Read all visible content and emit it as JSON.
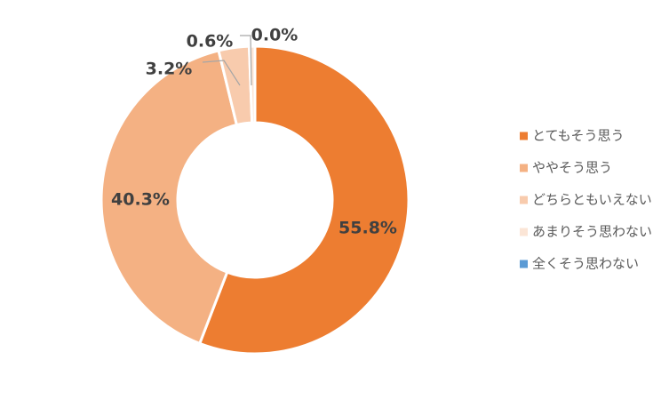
{
  "chart_data": {
    "type": "pie",
    "donut": true,
    "title": "",
    "legend_position": "right",
    "categories": [
      "とてもそう思う",
      "ややそう思う",
      "どちらともいえない",
      "あまりそう思わない",
      "全くそう思わない"
    ],
    "values": [
      55.8,
      40.3,
      3.2,
      0.6,
      0.0
    ],
    "labels": [
      "55.8%",
      "40.3%",
      "3.2%",
      "0.6%",
      "0.0%"
    ],
    "colors": [
      "#ED7D31",
      "#F4B183",
      "#F8CBAD",
      "#FBE5D6",
      "#5B9BD5"
    ]
  }
}
